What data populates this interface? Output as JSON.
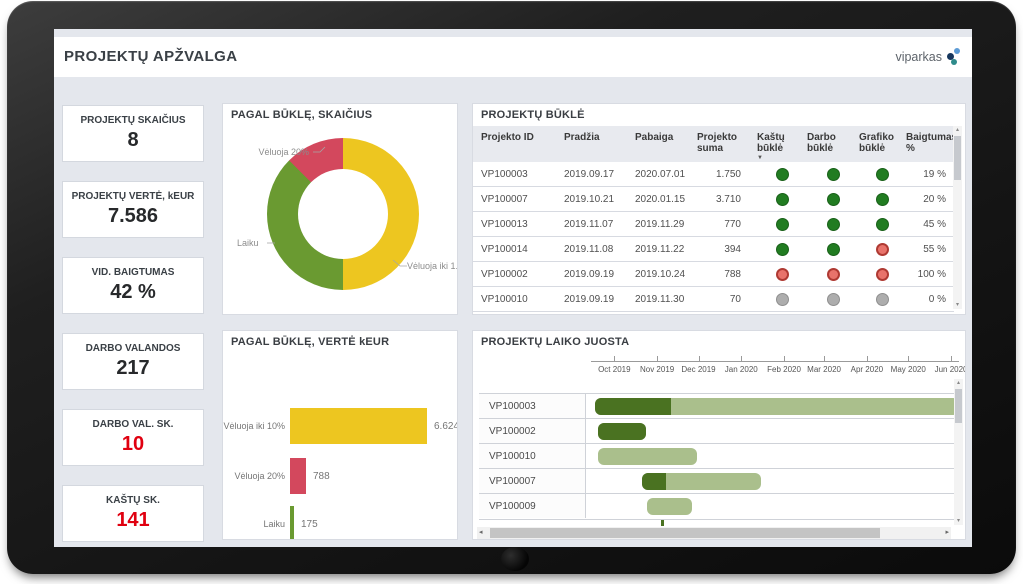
{
  "page": {
    "title": "PROJEKTŲ APŽVALGA",
    "brand": "viparkas"
  },
  "kpis": [
    {
      "label": "PROJEKTŲ SKAIČIUS",
      "value": "8",
      "color": "dark"
    },
    {
      "label": "PROJEKTŲ VERTĖ, kEUR",
      "value": "7.586",
      "color": "dark"
    },
    {
      "label": "VID. BAIGTUMAS",
      "value": "42 %",
      "color": "dark"
    },
    {
      "label": "DARBO VALANDOS",
      "value": "217",
      "color": "dark"
    },
    {
      "label": "DARBO VAL. SK.",
      "value": "10",
      "color": "red"
    },
    {
      "label": "KAŠTŲ SK.",
      "value": "141",
      "color": "red"
    }
  ],
  "table": {
    "title": "PROJEKTŲ BŪKLĖ",
    "columns": [
      "Projekto ID",
      "Pradžia",
      "Pabaiga",
      "Projekto suma",
      "Kaštų būklė",
      "Darbo būklė",
      "Grafiko būklė",
      "Baigtumas %"
    ],
    "sorted_column": "Kaštų būklė",
    "rows": [
      {
        "id": "VP100003",
        "start": "2019.09.17",
        "end": "2020.07.01",
        "sum": "1.750",
        "kastu": "green",
        "darbo": "green",
        "grafiko": "green",
        "baigtumas": "19 %"
      },
      {
        "id": "VP100007",
        "start": "2019.10.21",
        "end": "2020.01.15",
        "sum": "3.710",
        "kastu": "green",
        "darbo": "green",
        "grafiko": "green",
        "baigtumas": "20 %"
      },
      {
        "id": "VP100013",
        "start": "2019.11.07",
        "end": "2019.11.29",
        "sum": "770",
        "kastu": "green",
        "darbo": "green",
        "grafiko": "green",
        "baigtumas": "45 %"
      },
      {
        "id": "VP100014",
        "start": "2019.11.08",
        "end": "2019.11.22",
        "sum": "394",
        "kastu": "green",
        "darbo": "green",
        "grafiko": "red",
        "baigtumas": "55 %"
      },
      {
        "id": "VP100002",
        "start": "2019.09.19",
        "end": "2019.10.24",
        "sum": "788",
        "kastu": "red",
        "darbo": "red",
        "grafiko": "red",
        "baigtumas": "100 %"
      },
      {
        "id": "VP100010",
        "start": "2019.09.19",
        "end": "2019.11.30",
        "sum": "70",
        "kastu": "gray",
        "darbo": "gray",
        "grafiko": "gray",
        "baigtumas": "0 %"
      }
    ]
  },
  "chart_data": [
    {
      "id": "status-count-donut",
      "type": "pie",
      "title": "PAGAL BŪKLĘ, SKAIČIUS",
      "slices": [
        {
          "label": "Vėluoja iki 10%",
          "label_short": "Vėluoja iki 1...",
          "value": 4,
          "color": "#EDC620"
        },
        {
          "label": "Laiku",
          "value": 3,
          "color": "#6A9A31"
        },
        {
          "label": "Vėluoja 20%",
          "value": 1,
          "color": "#D3485D"
        }
      ]
    },
    {
      "id": "status-value-bars",
      "type": "bar",
      "title": "PAGAL BŪKLĘ, VERTĖ kEUR",
      "categories": [
        "Vėluoja iki 10%",
        "Vėluoja 20%",
        "Laiku"
      ],
      "values": [
        6624,
        788,
        175
      ],
      "value_labels": [
        "6.624",
        "788",
        "175"
      ],
      "colors": [
        "#EDC620",
        "#D3485D",
        "#6A9A31"
      ]
    },
    {
      "id": "timeline-gantt",
      "type": "gantt",
      "title": "PROJEKTŲ LAIKO JUOSTA",
      "axis_months": [
        "Oct 2019",
        "Nov 2019",
        "Dec 2019",
        "Jan 2020",
        "Feb 2020",
        "Mar 2020",
        "Apr 2020",
        "May 2020",
        "Jun 2020"
      ],
      "bar_colors": {
        "progress": "#4A7221",
        "remaining": "#AABF8C"
      },
      "rows": [
        {
          "id": "VP100003",
          "start": "2019-09-17",
          "end": "2020-07-01",
          "progress": 19
        },
        {
          "id": "VP100002",
          "start": "2019-09-19",
          "end": "2019-10-24",
          "progress": 100
        },
        {
          "id": "VP100010",
          "start": "2019-09-19",
          "end": "2019-11-30",
          "progress": 0
        },
        {
          "id": "VP100007",
          "start": "2019-10-21",
          "end": "2020-01-15",
          "progress": 20
        },
        {
          "id": "VP100009",
          "start": "2019-10-25",
          "end": "2019-11-26",
          "progress": 0
        }
      ]
    }
  ],
  "colors": {
    "screen_bg": "#E4E7ED",
    "kpi_alert_red": "#E00010",
    "status_green": "#217C21",
    "status_red": "#E8736B",
    "status_gray": "#ADADAD"
  }
}
